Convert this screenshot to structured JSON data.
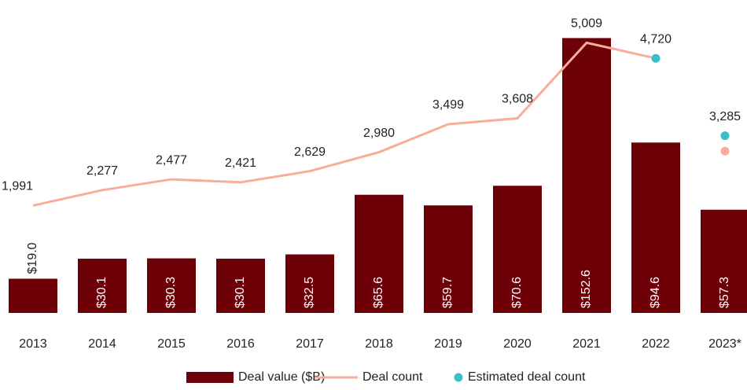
{
  "chart_data": {
    "type": "bar",
    "categories": [
      "2013",
      "2014",
      "2015",
      "2016",
      "2017",
      "2018",
      "2019",
      "2020",
      "2021",
      "2022",
      "2023*"
    ],
    "ylim": [
      0,
      165
    ],
    "y2lim": [
      0,
      5510
    ],
    "series": [
      {
        "name": "Deal value ($B)",
        "type": "bar",
        "color": "#6e0008",
        "values": [
          19.0,
          30.1,
          30.3,
          30.1,
          32.5,
          65.6,
          59.7,
          70.6,
          152.6,
          94.6,
          57.3
        ],
        "value_labels": [
          "$19.0",
          "$30.1",
          "$30.3",
          "$30.1",
          "$32.5",
          "$65.6",
          "$59.7",
          "$70.6",
          "$152.6",
          "$94.6",
          "$57.3"
        ]
      },
      {
        "name": "Deal count",
        "type": "line",
        "axis": "y2",
        "color": "#f8ad9a",
        "values": [
          1991,
          2277,
          2477,
          2421,
          2629,
          2980,
          3499,
          3608,
          5009,
          4720,
          3000
        ],
        "value_labels": [
          "1,991",
          "2,277",
          "2,477",
          "2,421",
          "2,629",
          "2,980",
          "3,499",
          "3,608",
          "5,009",
          null,
          null
        ]
      },
      {
        "name": "Estimated deal count",
        "type": "scatter",
        "axis": "y2",
        "color": "#3bbfc6",
        "values": [
          null,
          null,
          null,
          null,
          null,
          null,
          null,
          null,
          null,
          4720,
          3285
        ],
        "value_labels": [
          null,
          null,
          null,
          null,
          null,
          null,
          null,
          null,
          null,
          "4,720",
          "3,285"
        ]
      }
    ]
  }
}
